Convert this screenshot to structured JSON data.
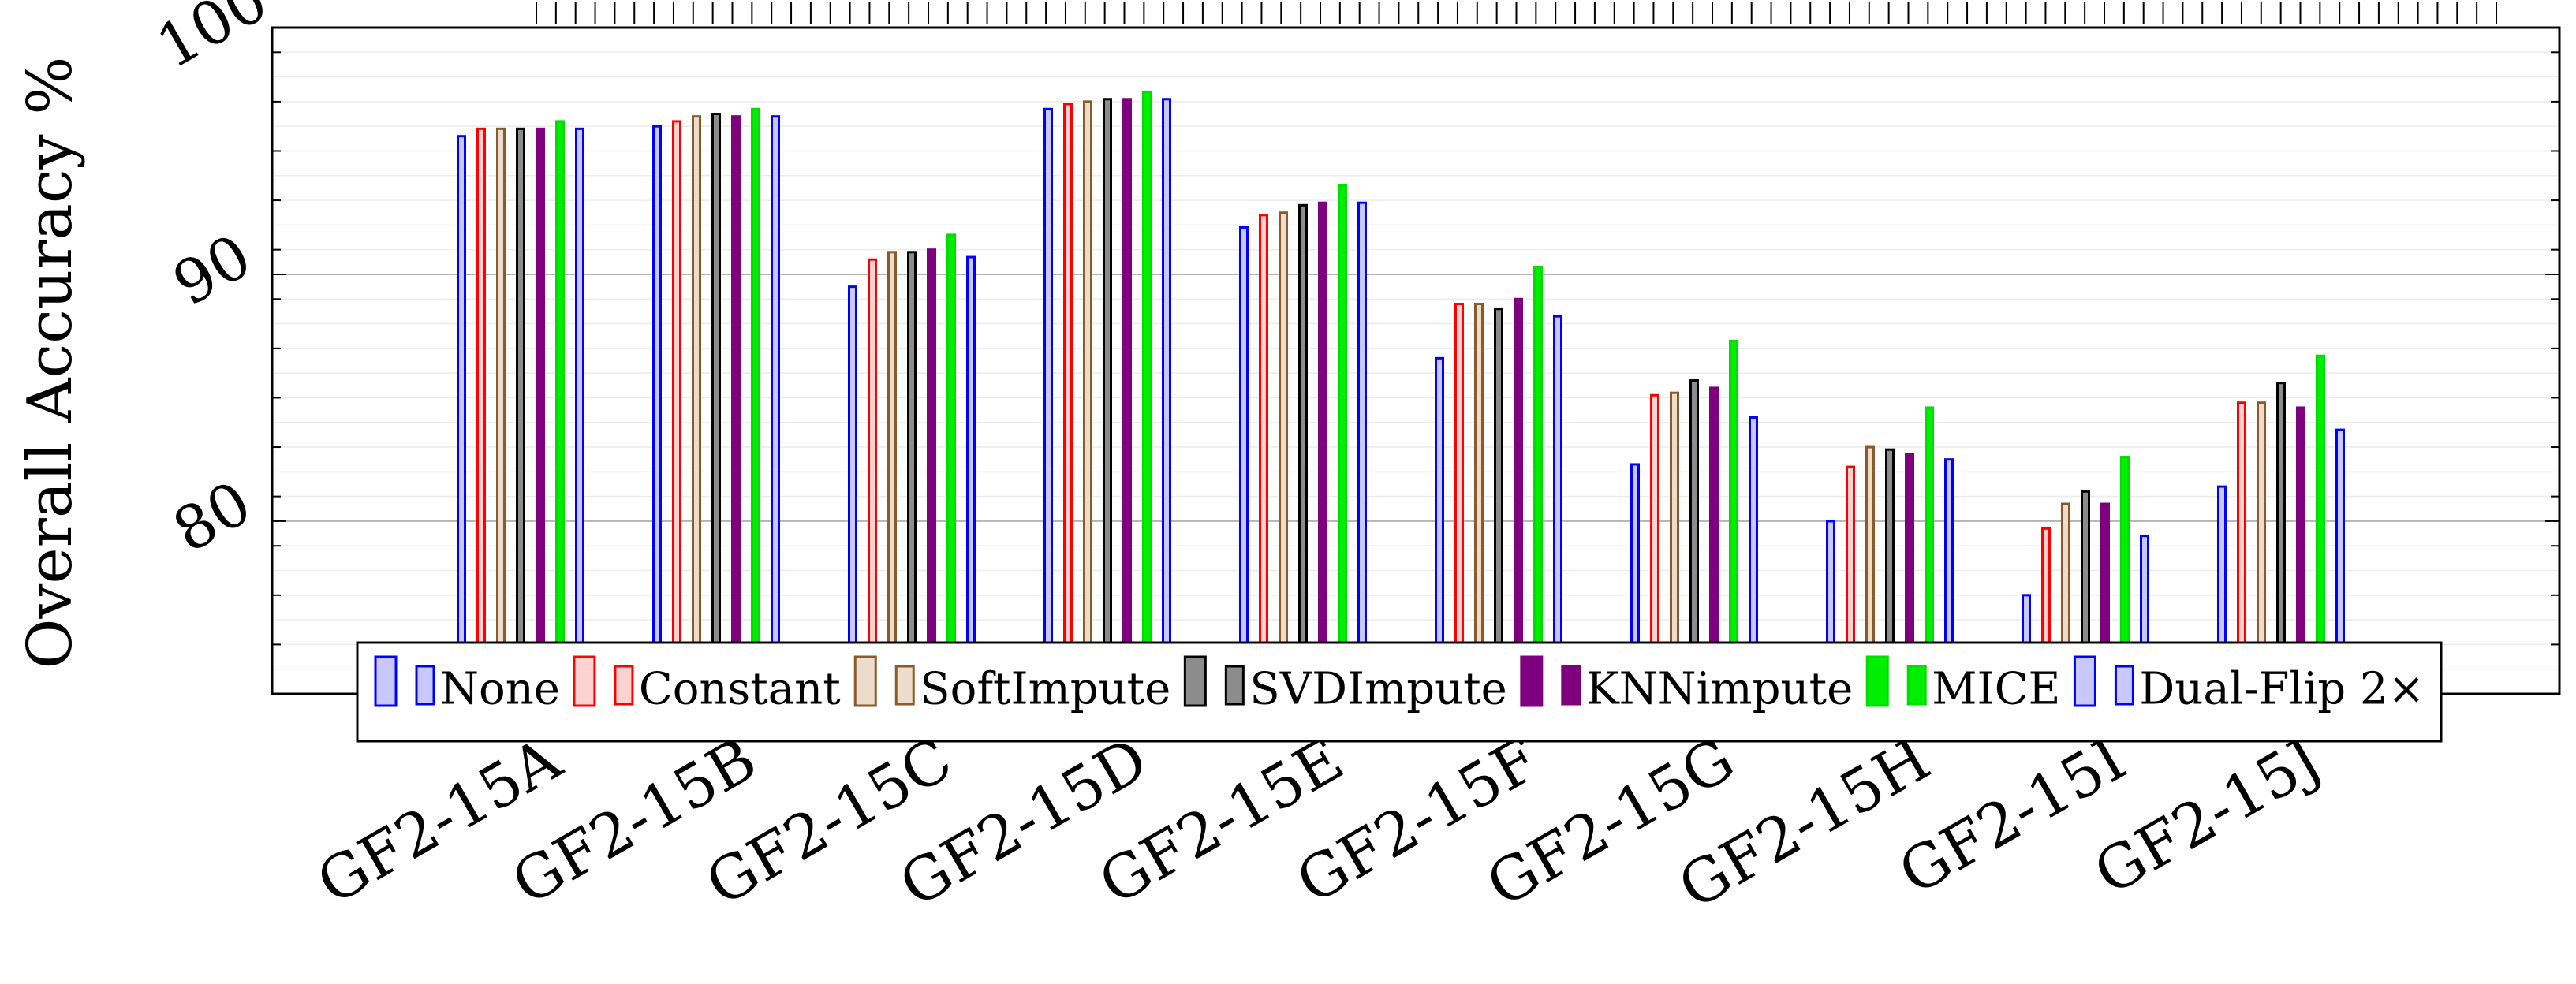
{
  "chart_data": {
    "type": "bar",
    "title": "",
    "xlabel": "",
    "ylabel": "Overall Accuracy %",
    "ylim": [
      73,
      100
    ],
    "yticks": [
      80,
      90,
      100
    ],
    "grid": true,
    "legend_position": "bottom-inside",
    "categories": [
      "GF2-15A",
      "GF2-15B",
      "GF2-15C",
      "GF2-15D",
      "GF2-15E",
      "GF2-15F",
      "GF2-15G",
      "GF2-15H",
      "GF2-15I",
      "GF2-15J"
    ],
    "series": [
      {
        "name": "None",
        "color": "#0000ff",
        "fill": "#c8c8ff",
        "values": [
          95.6,
          96.0,
          89.5,
          96.7,
          91.9,
          86.6,
          82.3,
          80.0,
          77.0,
          81.4
        ]
      },
      {
        "name": "Constant",
        "color": "#ff0000",
        "fill": "#ffd2d2",
        "values": [
          95.9,
          96.2,
          90.6,
          96.9,
          92.4,
          88.8,
          85.1,
          82.2,
          79.7,
          84.8
        ]
      },
      {
        "name": "SoftImpute",
        "color": "#8b5a2b",
        "fill": "#ecdccb",
        "values": [
          95.9,
          96.4,
          90.9,
          97.0,
          92.5,
          88.8,
          85.2,
          83.0,
          80.7,
          84.8
        ]
      },
      {
        "name": "SVDImpute",
        "color": "#000000",
        "fill": "#8c8c8c",
        "values": [
          95.9,
          96.5,
          90.9,
          97.1,
          92.8,
          88.6,
          85.7,
          82.9,
          81.2,
          85.6
        ]
      },
      {
        "name": "KNNimpute",
        "color": "#7f007f",
        "fill": "#7f007f",
        "values": [
          95.9,
          96.4,
          91.0,
          97.1,
          92.9,
          89.0,
          85.4,
          82.7,
          80.7,
          84.6
        ]
      },
      {
        "name": "MICE",
        "color": "#00dd00",
        "fill": "#00ee00",
        "values": [
          96.2,
          96.7,
          91.6,
          97.4,
          93.6,
          90.3,
          87.3,
          84.6,
          82.6,
          86.7
        ]
      },
      {
        "name": "Dual-Flip 2×",
        "color": "#0000ff",
        "fill": "#c8c8ff",
        "values": [
          95.9,
          96.4,
          90.7,
          97.1,
          92.9,
          88.3,
          84.2,
          82.5,
          79.4,
          83.7
        ]
      }
    ]
  }
}
